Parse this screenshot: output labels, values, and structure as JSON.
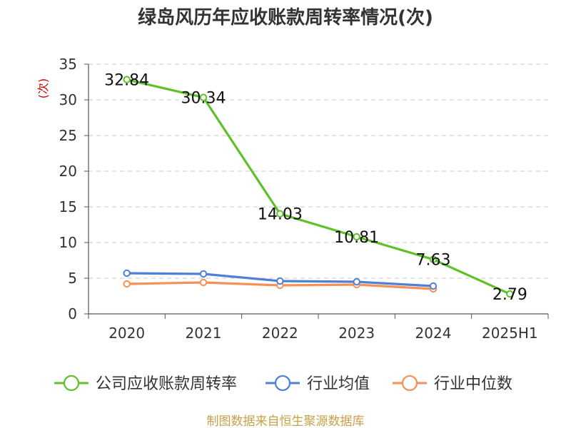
{
  "chart_data": {
    "type": "line",
    "title": "绿岛风历年应收账款周转率情况(次)",
    "ylabel": "(次)",
    "categories": [
      "2020",
      "2021",
      "2022",
      "2023",
      "2024",
      "2025H1"
    ],
    "ylim": [
      0,
      35
    ],
    "yticks": [
      0,
      5,
      10,
      15,
      20,
      25,
      30,
      35
    ],
    "grid": true,
    "legend_position": "bottom",
    "series": [
      {
        "name": "公司应收账款周转率",
        "color": "#5fc12a",
        "values": [
          32.84,
          30.34,
          14.03,
          10.81,
          7.63,
          2.79
        ],
        "labels": [
          "32.84",
          "30.34",
          "14.03",
          "10.81",
          "7.63",
          "2.79"
        ]
      },
      {
        "name": "行业均值",
        "color": "#4f7fd6",
        "values": [
          5.7,
          5.6,
          4.6,
          4.5,
          3.9,
          null
        ]
      },
      {
        "name": "行业中位数",
        "color": "#f59056",
        "values": [
          4.2,
          4.4,
          4.0,
          4.1,
          3.5,
          null
        ]
      }
    ],
    "source": "制图数据来自恒生聚源数据库",
    "source_color": "#c8a04a"
  }
}
